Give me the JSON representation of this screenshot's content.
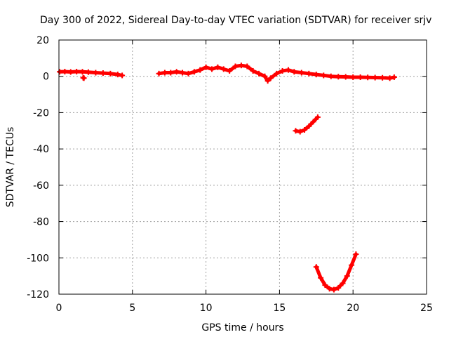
{
  "chart_data": {
    "type": "scatter",
    "title": "Day 300 of 2022, Sidereal Day-to-day VTEC variation (SDTVAR) for receiver srjv",
    "xlabel": "GPS time / hours",
    "ylabel": "SDTVAR / TECUs",
    "xlim": [
      0,
      25
    ],
    "ylim": [
      -120,
      20
    ],
    "xticks": [
      0,
      5,
      10,
      15,
      20,
      25
    ],
    "yticks": [
      20,
      0,
      -20,
      -40,
      -60,
      -80,
      -100,
      -120
    ],
    "grid": true,
    "marker": "plus",
    "series": [
      {
        "name": "SDTVAR",
        "color": "#ff0000",
        "segments": [
          {
            "x": [
              0.05,
              0.4,
              0.8,
              1.2,
              1.6,
              2.0,
              2.5,
              3.0,
              3.5,
              4.0,
              4.3
            ],
            "y": [
              2.5,
              2.6,
              2.4,
              2.6,
              2.5,
              2.3,
              2.0,
              1.8,
              1.5,
              1.0,
              0.5
            ]
          },
          {
            "x": [
              1.65,
              1.7
            ],
            "y": [
              -0.8,
              -1.0
            ]
          },
          {
            "x": [
              6.8,
              7.2,
              7.6,
              8.0,
              8.4,
              8.8,
              9.2,
              9.6,
              10.0,
              10.4,
              10.8,
              11.2,
              11.6,
              12.0,
              12.4,
              12.8,
              13.2,
              13.6,
              14.0,
              14.2,
              14.4,
              14.8,
              15.2,
              15.6,
              16.0,
              16.5,
              17.0,
              17.5,
              18.0,
              18.5,
              19.0,
              19.5,
              20.0,
              20.5,
              21.0,
              21.5,
              22.0,
              22.5,
              22.8
            ],
            "y": [
              1.5,
              2.0,
              2.0,
              2.5,
              2.0,
              1.5,
              2.5,
              3.5,
              5.0,
              4.0,
              5.0,
              4.0,
              3.0,
              5.5,
              6.0,
              5.5,
              3.0,
              1.5,
              0.0,
              -2.5,
              -1.0,
              1.5,
              3.0,
              3.5,
              2.5,
              2.0,
              1.5,
              1.0,
              0.5,
              0.0,
              -0.2,
              -0.3,
              -0.5,
              -0.5,
              -0.6,
              -0.7,
              -0.8,
              -1.0,
              -0.5
            ]
          },
          {
            "x": [
              16.1,
              16.4,
              16.7,
              17.0,
              17.3,
              17.6
            ],
            "y": [
              -30.0,
              -30.5,
              -29.5,
              -27.5,
              -25.0,
              -22.5
            ]
          },
          {
            "x": [
              17.5,
              17.8,
              18.1,
              18.4,
              18.7,
              19.0,
              19.3,
              19.6,
              19.9,
              20.2
            ],
            "y": [
              -105.0,
              -111.0,
              -115.0,
              -117.0,
              -117.5,
              -116.5,
              -114.0,
              -110.0,
              -104.0,
              -98.0
            ]
          }
        ]
      }
    ]
  }
}
